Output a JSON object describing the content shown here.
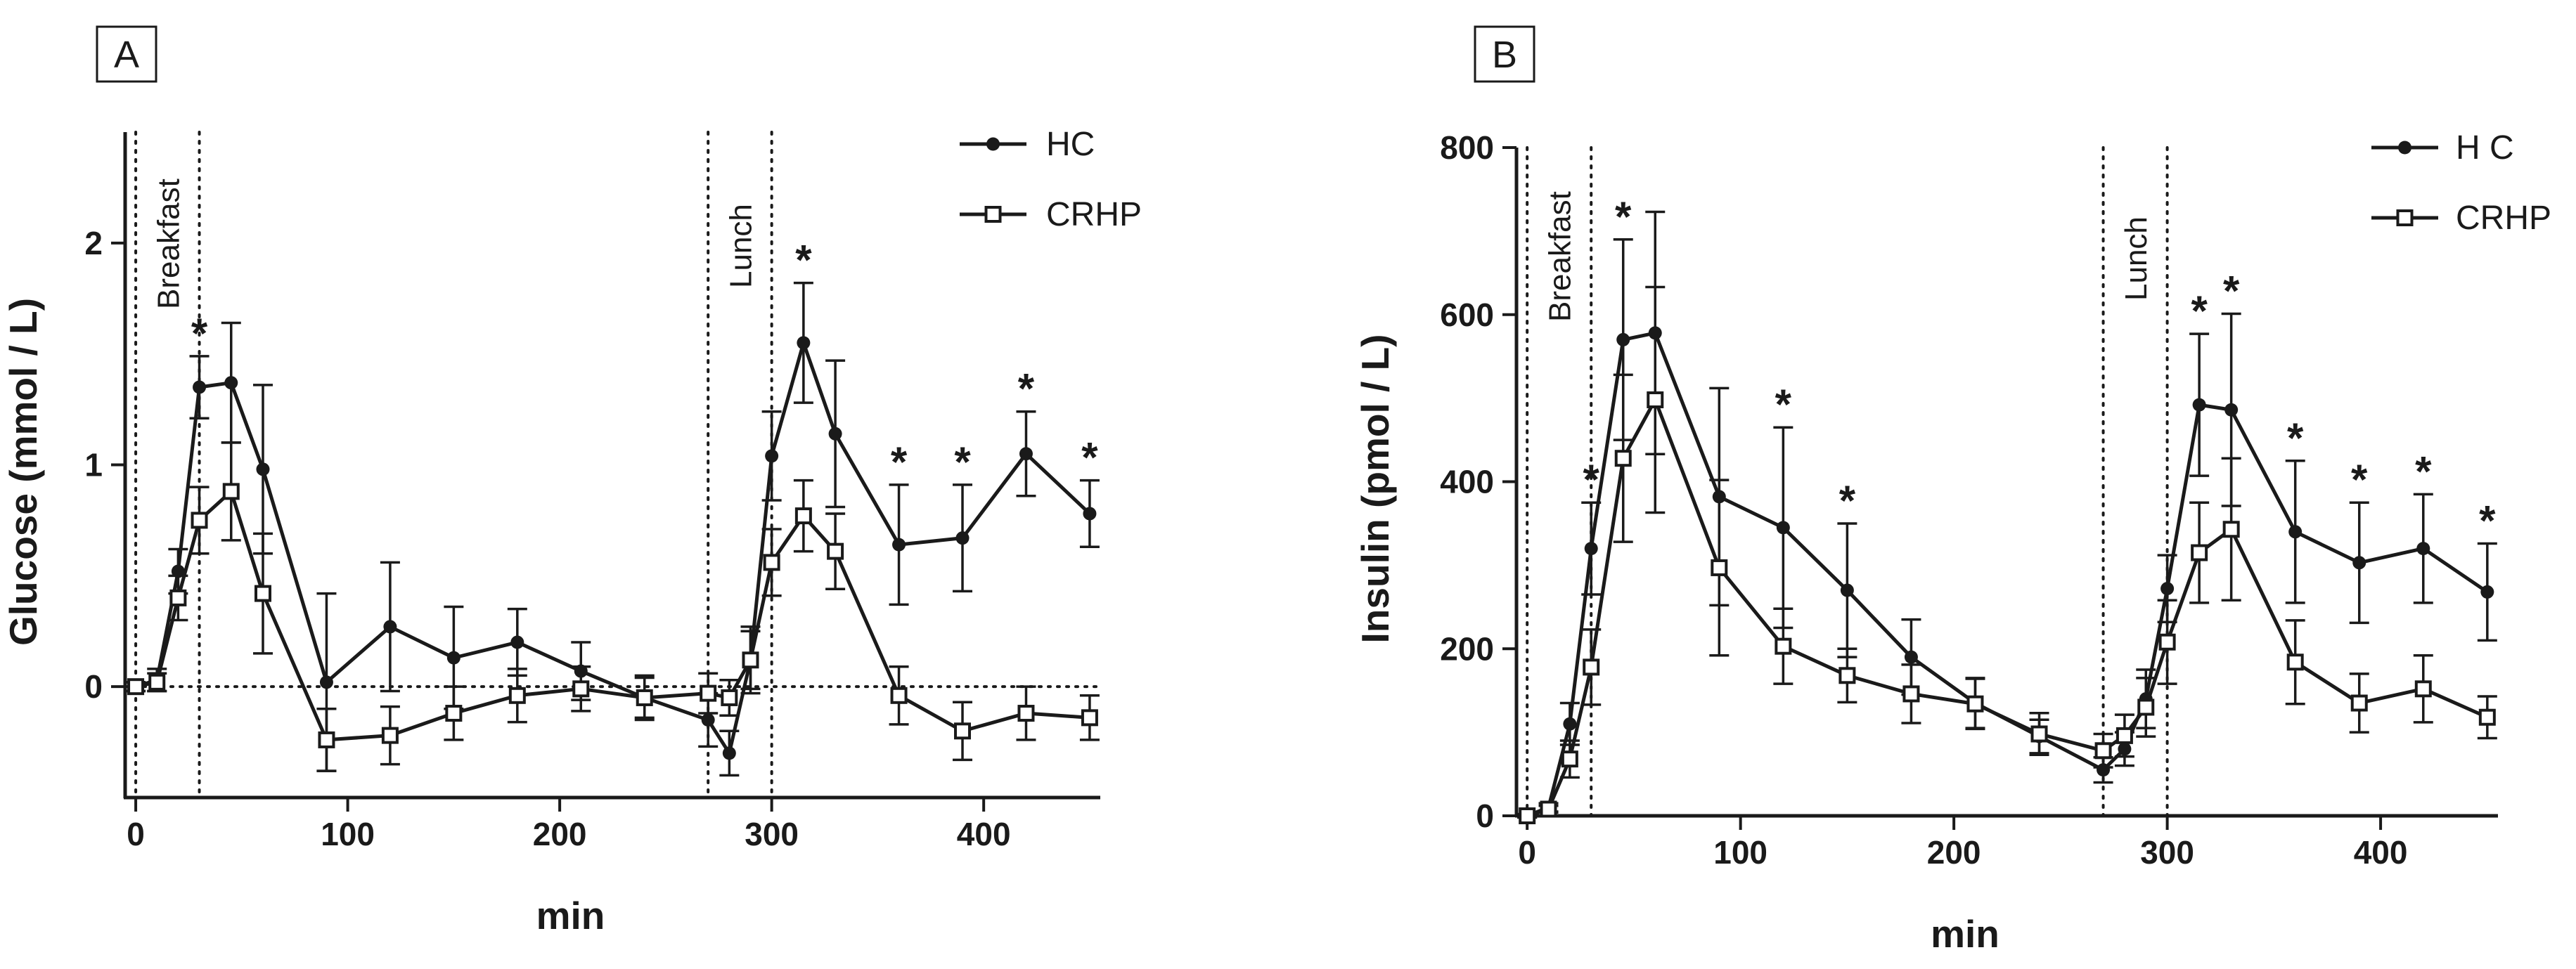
{
  "chart_data": [
    {
      "type": "line",
      "panel_label": "A",
      "title": "",
      "xlabel": "min",
      "ylabel": "Glucose (mmol / L)",
      "xlim": [
        -5,
        455
      ],
      "ylim": [
        -0.5,
        2.5
      ],
      "xticks": [
        0,
        100,
        200,
        300,
        400
      ],
      "xtick_labels": [
        "0",
        "100",
        "200",
        "300",
        "400"
      ],
      "yticks": [
        0,
        1,
        2
      ],
      "ytick_labels": [
        "0",
        "1",
        "2"
      ],
      "meal_lines": [
        0,
        30,
        270,
        300
      ],
      "meal_labels": [
        {
          "text": "Breakfast",
          "x": 15
        },
        {
          "text": "Lunch",
          "x": 285
        }
      ],
      "zero_reference_line": true,
      "legend_position": "top-right",
      "series": [
        {
          "name": "HC",
          "marker": "circle",
          "x": [
            0,
            10,
            20,
            30,
            45,
            60,
            90,
            120,
            150,
            180,
            210,
            240,
            270,
            280,
            290,
            300,
            315,
            330,
            360,
            390,
            420,
            450
          ],
          "values": [
            0,
            0.03,
            0.52,
            1.35,
            1.37,
            0.98,
            0.02,
            0.27,
            0.13,
            0.2,
            0.07,
            -0.05,
            -0.15,
            -0.3,
            0.12,
            1.04,
            1.55,
            1.14,
            0.64,
            0.67,
            1.05,
            0.78
          ],
          "errors": [
            0.02,
            0.05,
            0.1,
            0.14,
            0.27,
            0.38,
            0.4,
            0.29,
            0.23,
            0.15,
            0.13,
            0.1,
            0.12,
            0.1,
            0.15,
            0.2,
            0.27,
            0.33,
            0.27,
            0.24,
            0.19,
            0.15
          ]
        },
        {
          "name": "CRHP",
          "marker": "open-square",
          "x": [
            0,
            10,
            20,
            30,
            45,
            60,
            90,
            120,
            150,
            180,
            210,
            240,
            270,
            280,
            290,
            300,
            315,
            330,
            360,
            390,
            420,
            450
          ],
          "values": [
            0,
            0.02,
            0.4,
            0.75,
            0.88,
            0.42,
            -0.24,
            -0.22,
            -0.12,
            -0.04,
            -0.01,
            -0.05,
            -0.03,
            -0.05,
            0.12,
            0.56,
            0.77,
            0.61,
            -0.04,
            -0.2,
            -0.12,
            -0.14
          ],
          "errors": [
            0.02,
            0.04,
            0.1,
            0.15,
            0.22,
            0.27,
            0.14,
            0.13,
            0.12,
            0.12,
            0.1,
            0.09,
            0.09,
            0.08,
            0.13,
            0.15,
            0.16,
            0.17,
            0.13,
            0.13,
            0.12,
            0.1
          ]
        }
      ],
      "significance_marker": "*",
      "significant_x": [
        30,
        315,
        360,
        390,
        420,
        450
      ]
    },
    {
      "type": "line",
      "panel_label": "B",
      "title": "",
      "xlabel": "min",
      "ylabel": "Insulin (pmol / L)",
      "xlim": [
        -5,
        455
      ],
      "ylim": [
        0,
        800
      ],
      "xticks": [
        0,
        100,
        200,
        300,
        400
      ],
      "xtick_labels": [
        "0",
        "100",
        "200",
        "300",
        "400"
      ],
      "yticks": [
        0,
        200,
        400,
        600,
        800
      ],
      "ytick_labels": [
        "0",
        "200",
        "400",
        "600",
        "800"
      ],
      "meal_lines": [
        0,
        30,
        270,
        300
      ],
      "meal_labels": [
        {
          "text": "Breakfast",
          "x": 15
        },
        {
          "text": "Lunch",
          "x": 285
        }
      ],
      "zero_reference_line": false,
      "legend_position": "top-right",
      "series": [
        {
          "name": "H C",
          "marker": "circle",
          "x": [
            0,
            10,
            20,
            30,
            45,
            60,
            90,
            120,
            150,
            180,
            210,
            240,
            270,
            280,
            290,
            300,
            315,
            330,
            360,
            390,
            420,
            450
          ],
          "values": [
            0,
            10,
            110,
            320,
            570,
            578,
            382,
            345,
            270,
            190,
            135,
            95,
            55,
            80,
            140,
            272,
            492,
            486,
            340,
            303,
            320,
            268
          ],
          "errors": [
            2,
            5,
            25,
            55,
            120,
            145,
            130,
            120,
            80,
            45,
            30,
            20,
            15,
            20,
            35,
            40,
            85,
            115,
            85,
            72,
            65,
            58
          ]
        },
        {
          "name": "CRHP",
          "marker": "open-square",
          "x": [
            0,
            10,
            20,
            30,
            45,
            60,
            90,
            120,
            150,
            180,
            210,
            240,
            270,
            280,
            290,
            300,
            315,
            330,
            360,
            390,
            420,
            450
          ],
          "values": [
            0,
            8,
            68,
            178,
            428,
            498,
            297,
            203,
            168,
            146,
            134,
            98,
            78,
            96,
            130,
            208,
            315,
            343,
            184,
            135,
            152,
            118
          ],
          "errors": [
            2,
            4,
            22,
            45,
            100,
            135,
            105,
            45,
            32,
            35,
            30,
            25,
            20,
            25,
            35,
            50,
            60,
            85,
            50,
            35,
            40,
            25
          ]
        }
      ],
      "significance_marker": "*",
      "significant_x": [
        30,
        45,
        120,
        150,
        315,
        330,
        360,
        390,
        420,
        450
      ]
    }
  ]
}
